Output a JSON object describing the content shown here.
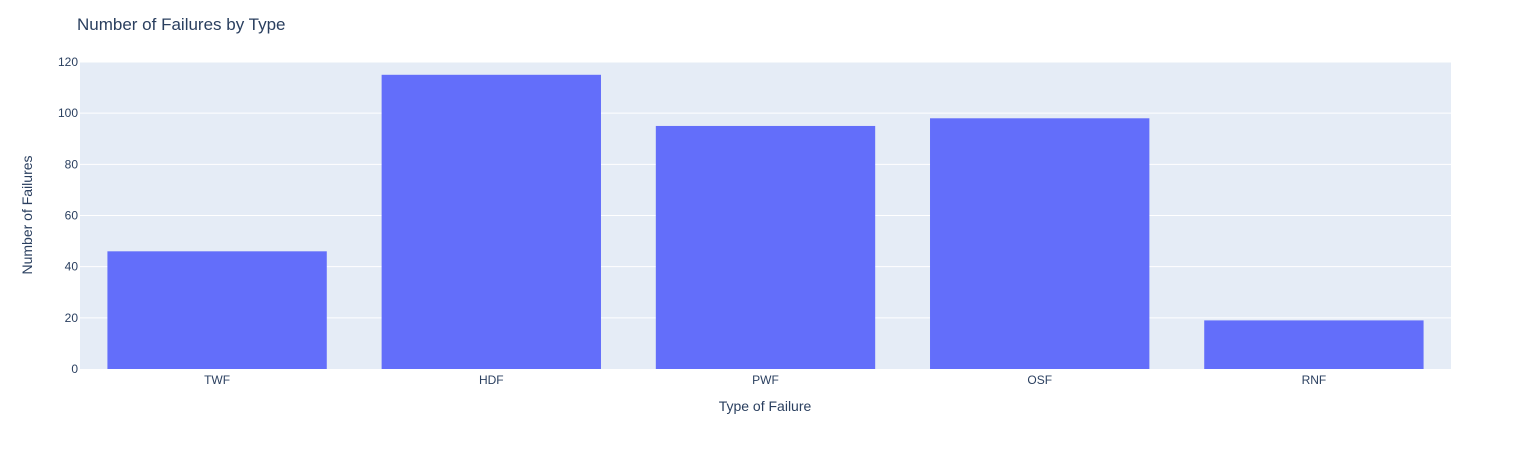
{
  "chart_data": {
    "type": "bar",
    "title": "Number of Failures by Type",
    "xlabel": "Type of Failure",
    "ylabel": "Number of Failures",
    "categories": [
      "TWF",
      "HDF",
      "PWF",
      "OSF",
      "RNF"
    ],
    "values": [
      46,
      115,
      95,
      98,
      19
    ],
    "ylim": [
      0,
      120
    ],
    "yticks": [
      0,
      20,
      40,
      60,
      80,
      100,
      120
    ],
    "grid": true,
    "legend": "none"
  },
  "colors": {
    "bar": "#636efa",
    "plot_bg": "#e5ecf6",
    "grid": "#ffffff",
    "text": "#2a3f5f",
    "title": "#2a3f5f"
  }
}
